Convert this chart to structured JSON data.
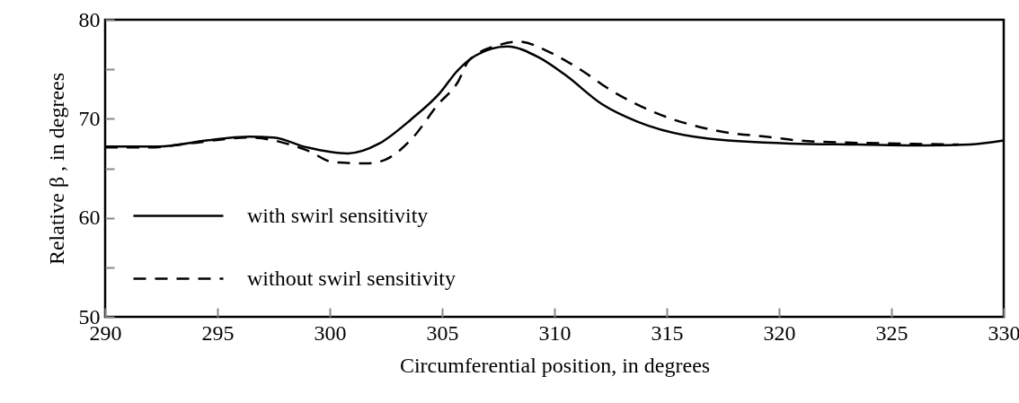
{
  "chart_data": {
    "type": "line",
    "xlabel": "Circumferential position, in degrees",
    "ylabel": "Relative β , in degrees",
    "xlim": [
      290,
      330
    ],
    "xticks": [
      290,
      295,
      300,
      305,
      310,
      315,
      320,
      325,
      330
    ],
    "ylim": [
      50,
      80
    ],
    "yticks": [
      50,
      {
        "value": 55,
        "label": null
      },
      60,
      {
        "value": 65,
        "label": null
      },
      70,
      {
        "value": 75,
        "label": null
      },
      80
    ],
    "grid": false,
    "legend": "bottom left",
    "marker": "none",
    "series": [
      {
        "name": "with swirl sensitivity",
        "color": "#000000",
        "line_style": "solid",
        "x": [
          290,
          292.4,
          294.5,
          296.4,
          297.5,
          299.0,
          300.8,
          302.2,
          303.6,
          304.9,
          305.7,
          306.5,
          307.9,
          309.3,
          310.5,
          312.1,
          313.7,
          316.5,
          320.5,
          323.5,
          326.6,
          328.5,
          330
        ],
        "values": [
          67.2,
          67.2,
          67.8,
          68.2,
          68.1,
          67.1,
          66.5,
          67.5,
          69.9,
          72.6,
          74.9,
          76.4,
          77.3,
          76.2,
          74.4,
          71.5,
          69.7,
          68.1,
          67.5,
          67.4,
          67.3,
          67.4,
          67.8
        ]
      },
      {
        "name": "without swirl sensitivity",
        "color": "#000000",
        "line_style": "dashed",
        "x": [
          290,
          292,
          293.7,
          296.4,
          299.0,
          300.2,
          301.7,
          302.5,
          303.7,
          304.8,
          305.7,
          306.2,
          307.6,
          308.4,
          309.8,
          311.2,
          312.5,
          314.5,
          317.2,
          319.8,
          320.9,
          323,
          325.3,
          328
        ],
        "values": [
          67.1,
          67.1,
          67.5,
          68.1,
          66.8,
          65.6,
          65.5,
          65.9,
          68.1,
          71.4,
          73.7,
          75.9,
          77.5,
          77.8,
          76.7,
          74.9,
          72.9,
          70.6,
          68.8,
          68.1,
          67.8,
          67.6,
          67.5,
          67.4
        ]
      }
    ]
  }
}
